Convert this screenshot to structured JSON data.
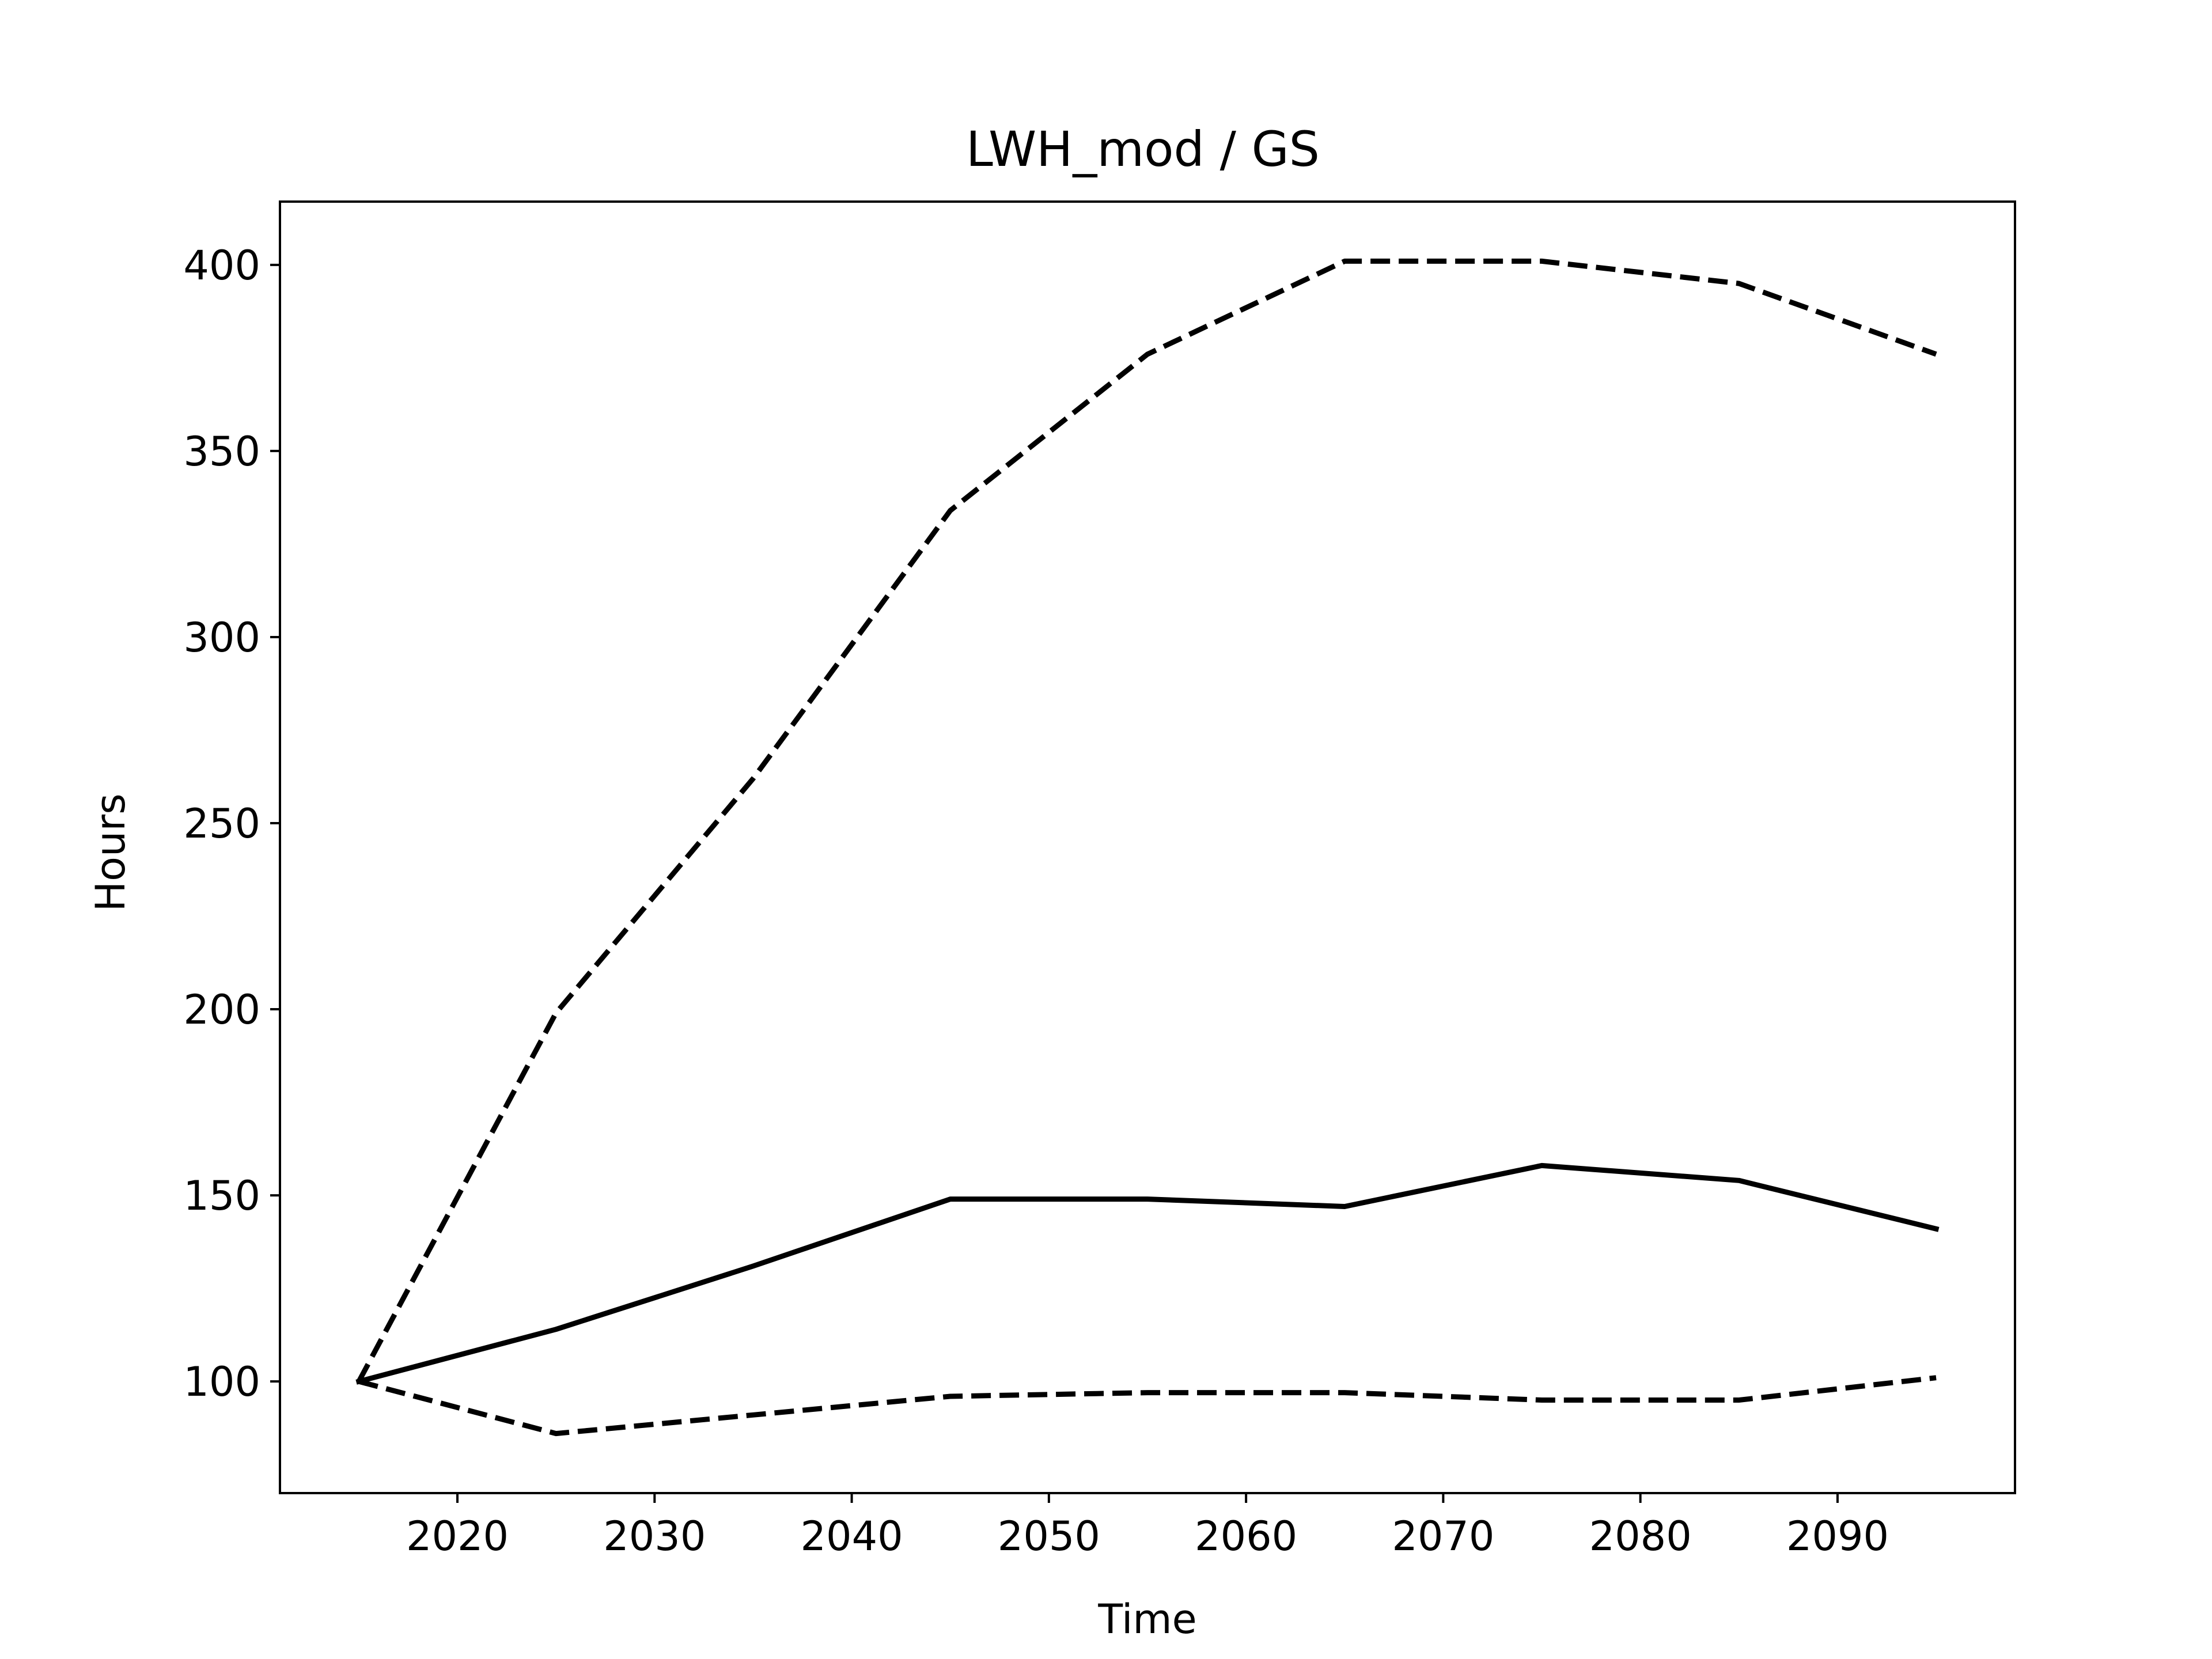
{
  "chart_data": {
    "type": "line",
    "title": "LWH_mod / GS",
    "xlabel": "Time",
    "ylabel": "Hours",
    "xlim": [
      2011,
      2099
    ],
    "ylim": [
      70,
      417
    ],
    "xticks": [
      2020,
      2030,
      2040,
      2050,
      2060,
      2070,
      2080,
      2090
    ],
    "yticks": [
      100,
      150,
      200,
      250,
      300,
      350,
      400
    ],
    "grid": false,
    "x": [
      2015,
      2025,
      2035,
      2045,
      2055,
      2065,
      2075,
      2085,
      2095
    ],
    "series": [
      {
        "style": "solid",
        "color": "#000000",
        "values": [
          100,
          114,
          131,
          149,
          149,
          147,
          158,
          154,
          141
        ]
      },
      {
        "style": "dashed",
        "color": "#000000",
        "values": [
          100,
          199,
          262,
          334,
          376,
          401,
          401,
          395,
          376
        ]
      },
      {
        "style": "dashed",
        "color": "#000000",
        "values": [
          100,
          86,
          91,
          96,
          97,
          97,
          95,
          95,
          101
        ]
      }
    ]
  }
}
